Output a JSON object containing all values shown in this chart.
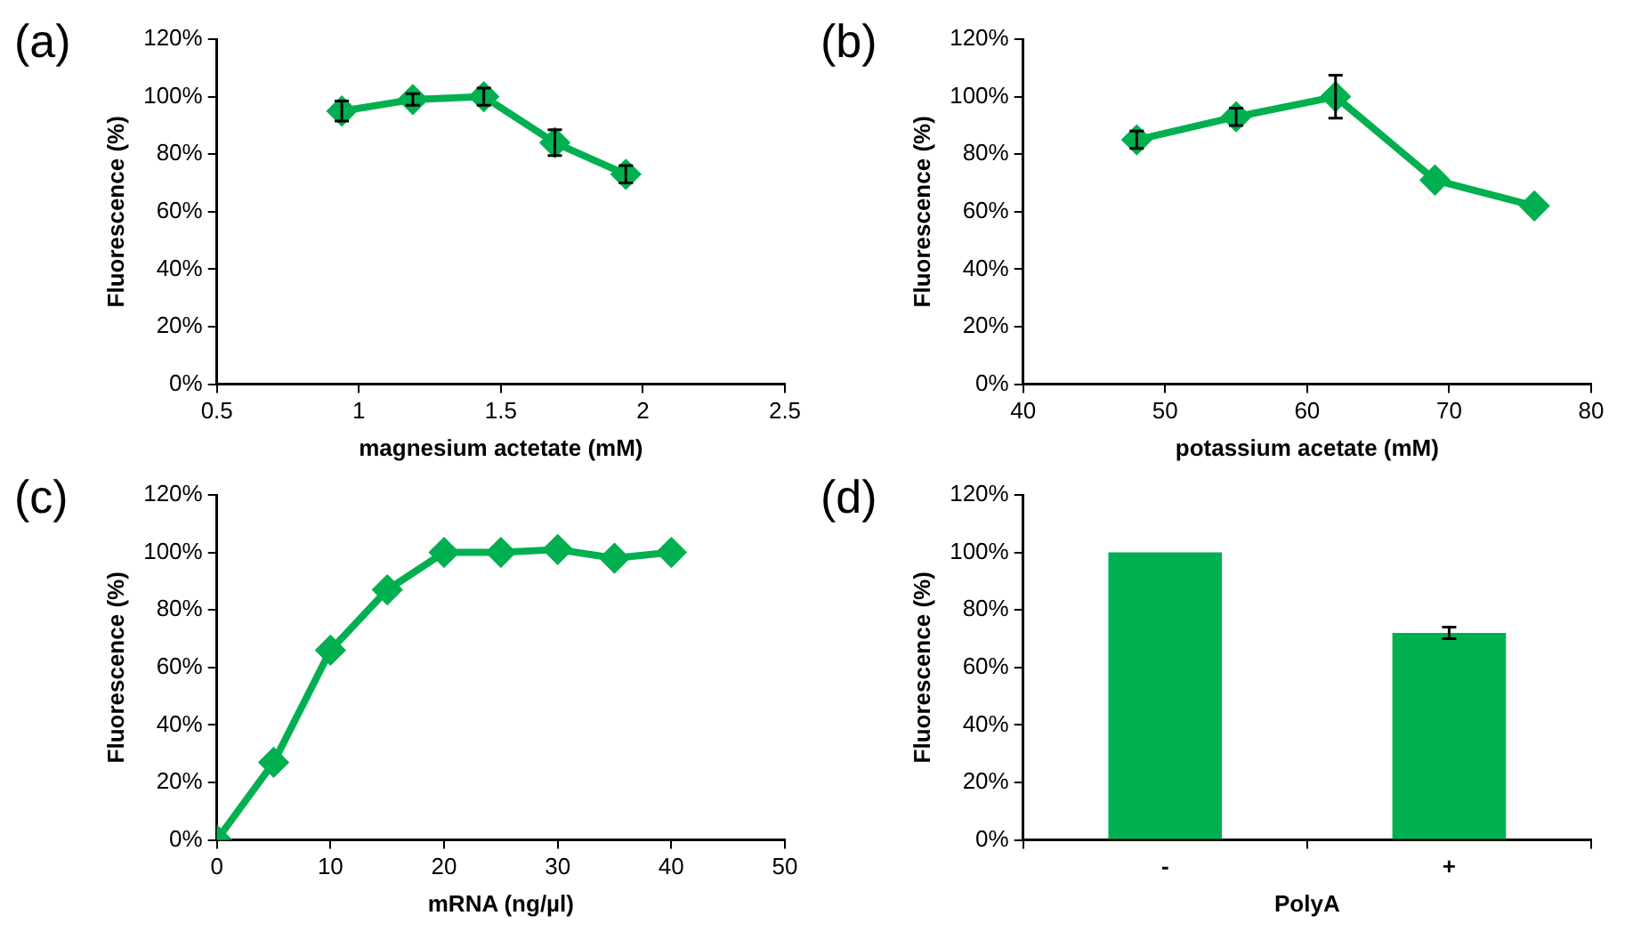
{
  "chart_data": [
    {
      "type": "line",
      "title": "(a)",
      "xlabel": "magnesium actetate (mM)",
      "ylabel": "Fluorescence (%)",
      "x": [
        0.94,
        1.19,
        1.44,
        1.69,
        1.94
      ],
      "values": [
        95,
        99,
        100,
        84,
        73
      ],
      "errors": [
        3.5,
        2,
        3,
        4.5,
        3
      ],
      "color": "#00b050",
      "marker": "diamond",
      "xlim": [
        0.5,
        2.5
      ],
      "xticks": [
        0.5,
        1,
        1.5,
        2,
        2.5
      ],
      "ylim": [
        0,
        120
      ],
      "yticks": [
        {
          "value": 0,
          "label": "0%"
        },
        {
          "value": 20,
          "label": "20%"
        },
        {
          "value": 40,
          "label": "40%"
        },
        {
          "value": 60,
          "label": "60%"
        },
        {
          "value": 80,
          "label": "80%"
        },
        {
          "value": 100,
          "label": "100%"
        },
        {
          "value": 120,
          "label": "120%"
        }
      ],
      "grid": false,
      "legend": false
    },
    {
      "type": "line",
      "title": "(b)",
      "xlabel": "potassium acetate (mM)",
      "ylabel": "Fluorescence (%)",
      "x": [
        48,
        55,
        62,
        69,
        76
      ],
      "values": [
        85,
        93,
        100,
        71,
        62
      ],
      "errors": [
        3,
        3,
        7.5,
        null,
        null
      ],
      "color": "#00b050",
      "marker": "diamond",
      "xlim": [
        40,
        80
      ],
      "xticks": [
        40,
        50,
        60,
        70,
        80
      ],
      "ylim": [
        0,
        120
      ],
      "yticks": [
        {
          "value": 0,
          "label": "0%"
        },
        {
          "value": 20,
          "label": "20%"
        },
        {
          "value": 40,
          "label": "40%"
        },
        {
          "value": 60,
          "label": "60%"
        },
        {
          "value": 80,
          "label": "80%"
        },
        {
          "value": 100,
          "label": "100%"
        },
        {
          "value": 120,
          "label": "120%"
        }
      ],
      "grid": false,
      "legend": false
    },
    {
      "type": "line",
      "title": "(c)",
      "xlabel": "mRNA (ng/µl)",
      "ylabel": "Fluorescence (%)",
      "x": [
        0,
        5,
        10,
        15,
        20,
        25,
        30,
        35,
        40
      ],
      "values": [
        0,
        27,
        66,
        87,
        100,
        100,
        101,
        98,
        100
      ],
      "color": "#00b050",
      "marker": "diamond",
      "xlim": [
        0,
        50
      ],
      "xticks": [
        0,
        10,
        20,
        30,
        40,
        50
      ],
      "ylim": [
        0,
        120
      ],
      "yticks": [
        {
          "value": 0,
          "label": "0%"
        },
        {
          "value": 20,
          "label": "20%"
        },
        {
          "value": 40,
          "label": "40%"
        },
        {
          "value": 60,
          "label": "60%"
        },
        {
          "value": 80,
          "label": "80%"
        },
        {
          "value": 100,
          "label": "100%"
        },
        {
          "value": 120,
          "label": "120%"
        }
      ],
      "grid": false,
      "legend": false
    },
    {
      "type": "bar",
      "title": "(d)",
      "xlabel": "PolyA",
      "ylabel": "Fluorescence (%)",
      "categories": [
        "-",
        "+"
      ],
      "values": [
        100,
        72
      ],
      "errors": [
        null,
        2
      ],
      "color": "#00b050",
      "ylim": [
        0,
        120
      ],
      "yticks": [
        {
          "value": 0,
          "label": "0%"
        },
        {
          "value": 20,
          "label": "20%"
        },
        {
          "value": 40,
          "label": "40%"
        },
        {
          "value": 60,
          "label": "60%"
        },
        {
          "value": 80,
          "label": "80%"
        },
        {
          "value": 100,
          "label": "100%"
        },
        {
          "value": 120,
          "label": "120%"
        }
      ],
      "grid": false,
      "legend": false
    }
  ]
}
